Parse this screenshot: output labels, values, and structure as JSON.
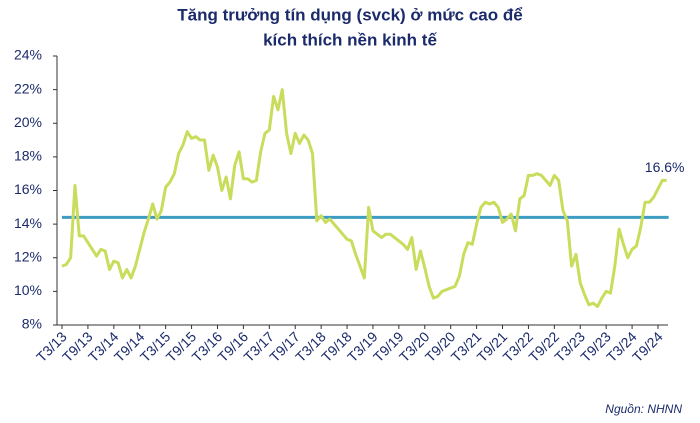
{
  "chart_data": {
    "type": "line",
    "title_lines": [
      "Tăng trưởng tín dụng (svck) ở mức cao để",
      "kích thích nền kinh tế"
    ],
    "source": "Nguồn: NHNN",
    "end_label": "16.6%",
    "categories": [
      "T3/13",
      null,
      null,
      null,
      null,
      null,
      "T9/13",
      null,
      null,
      null,
      null,
      null,
      "T3/14",
      null,
      null,
      null,
      null,
      null,
      "T9/14",
      null,
      null,
      null,
      null,
      null,
      "T3/15",
      null,
      null,
      null,
      null,
      null,
      "T9/15",
      null,
      null,
      null,
      null,
      null,
      "T3/16",
      null,
      null,
      null,
      null,
      null,
      "T9/16",
      null,
      null,
      null,
      null,
      null,
      "T3/17",
      null,
      null,
      null,
      null,
      null,
      "T9/17",
      null,
      null,
      null,
      null,
      null,
      "T3/18",
      null,
      null,
      null,
      null,
      null,
      "T9/18",
      null,
      null,
      null,
      null,
      null,
      "T3/19",
      null,
      null,
      null,
      null,
      null,
      "T9/19",
      null,
      null,
      null,
      null,
      null,
      "T3/20",
      null,
      null,
      null,
      null,
      null,
      "T9/20",
      null,
      null,
      null,
      null,
      null,
      "T3/21",
      null,
      null,
      null,
      null,
      null,
      "T9/21",
      null,
      null,
      null,
      null,
      null,
      "T3/22",
      null,
      null,
      null,
      null,
      null,
      "T9/22",
      null,
      null,
      null,
      null,
      null,
      "T3/23",
      null,
      null,
      null,
      null,
      null,
      "T9/23",
      null,
      null,
      null,
      null,
      null,
      "T3/24",
      null,
      null,
      null,
      null,
      null,
      "T9/24",
      null,
      null
    ],
    "series": [
      {
        "color": "#c9dc5c",
        "values": [
          11.5,
          11.6,
          12.0,
          16.3,
          13.3,
          13.3,
          12.9,
          12.5,
          12.1,
          12.5,
          12.4,
          11.3,
          11.8,
          11.7,
          10.8,
          11.3,
          10.8,
          11.5,
          12.5,
          13.5,
          14.3,
          15.2,
          14.3,
          14.8,
          16.2,
          16.5,
          17.0,
          18.2,
          18.7,
          19.5,
          19.1,
          19.2,
          19.0,
          19.0,
          17.2,
          18.1,
          17.4,
          16.0,
          16.8,
          15.5,
          17.5,
          18.3,
          16.7,
          16.7,
          16.5,
          16.6,
          18.3,
          19.4,
          19.6,
          21.6,
          20.8,
          22.0,
          19.4,
          18.2,
          19.4,
          18.8,
          19.3,
          19.0,
          18.2,
          14.2,
          14.5,
          14.1,
          14.3,
          14.0,
          13.7,
          13.4,
          13.1,
          13.0,
          12.2,
          11.5,
          10.8,
          15.0,
          13.6,
          13.4,
          13.2,
          13.4,
          13.4,
          13.2,
          13.0,
          12.8,
          12.5,
          13.2,
          11.3,
          12.4,
          11.4,
          10.3,
          9.6,
          9.7,
          10.0,
          10.1,
          10.2,
          10.3,
          10.9,
          12.2,
          12.9,
          12.8,
          14.0,
          15.0,
          15.3,
          15.2,
          15.3,
          15.0,
          14.1,
          14.3,
          14.6,
          13.6,
          15.5,
          15.7,
          16.9,
          16.9,
          17.0,
          16.9,
          16.6,
          16.3,
          16.9,
          16.6,
          14.8,
          14.2,
          11.5,
          12.2,
          10.5,
          9.8,
          9.2,
          9.3,
          9.1,
          9.6,
          10.0,
          9.9,
          11.5,
          13.7,
          12.8,
          12.0,
          12.5,
          12.7,
          13.8,
          15.3,
          15.3,
          15.6,
          16.1,
          16.6,
          16.6
        ]
      }
    ],
    "reference_line": {
      "value": 14.4,
      "color": "#3d9cc2"
    },
    "ylim": [
      8,
      24
    ],
    "yticks": [
      {
        "value": 8,
        "label": "8%"
      },
      {
        "value": 10,
        "label": "10%"
      },
      {
        "value": 12,
        "label": "12%"
      },
      {
        "value": 14,
        "label": "14%"
      },
      {
        "value": 16,
        "label": "16%"
      },
      {
        "value": 18,
        "label": "18%"
      },
      {
        "value": 20,
        "label": "20%"
      },
      {
        "value": 22,
        "label": "22%"
      },
      {
        "value": 24,
        "label": "24%"
      }
    ],
    "grid": false
  }
}
